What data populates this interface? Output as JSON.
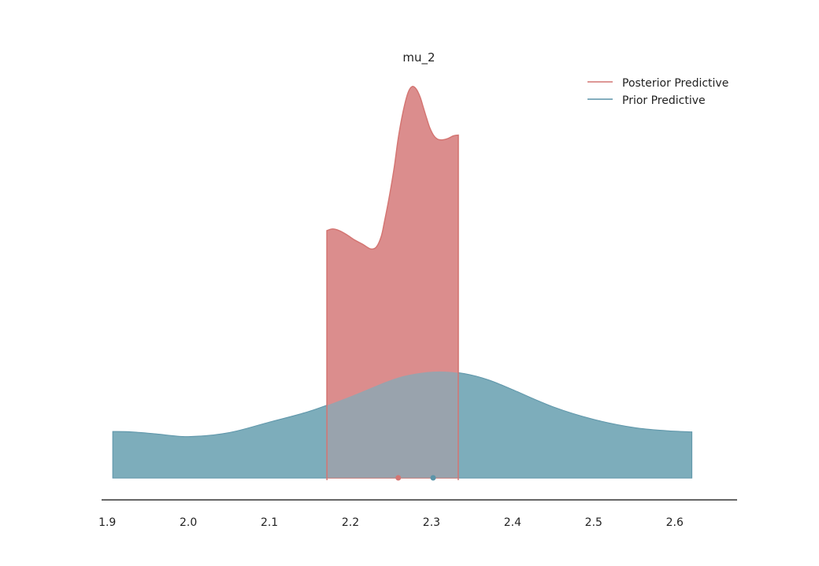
{
  "chart_data": {
    "type": "area",
    "title": "mu_2",
    "xlabel": "",
    "ylabel": "",
    "xlim": [
      1.893,
      2.677
    ],
    "ylim": [
      0,
      1
    ],
    "x_ticks": [
      "1.9",
      "2.0",
      "2.1",
      "2.2",
      "2.3",
      "2.4",
      "2.5",
      "2.6"
    ],
    "grid": false,
    "legend": {
      "placement": "top-right",
      "entries": [
        "Posterior Predictive",
        "Prior Predictive"
      ]
    },
    "series": [
      {
        "name": "Posterior Predictive",
        "color": "#d47673",
        "fill": "#db8d8d",
        "x": [
          2.171,
          2.178,
          2.186,
          2.195,
          2.205,
          2.215,
          2.225,
          2.232,
          2.238,
          2.242,
          2.248,
          2.254,
          2.259,
          2.265,
          2.271,
          2.276,
          2.281,
          2.286,
          2.29,
          2.294,
          2.298,
          2.303,
          2.308,
          2.314,
          2.32,
          2.327,
          2.333
        ],
        "values": [
          0.632,
          0.636,
          0.632,
          0.622,
          0.608,
          0.597,
          0.585,
          0.59,
          0.617,
          0.655,
          0.719,
          0.793,
          0.868,
          0.936,
          0.984,
          1.0,
          0.994,
          0.973,
          0.946,
          0.919,
          0.894,
          0.874,
          0.865,
          0.864,
          0.867,
          0.874,
          0.876
        ]
      },
      {
        "name": "Prior Predictive",
        "color": "#5b94a8",
        "fill": "#7eadbb",
        "x": [
          1.907,
          1.93,
          1.96,
          2.0,
          2.05,
          2.1,
          2.15,
          2.2,
          2.25,
          2.28,
          2.31,
          2.34,
          2.37,
          2.4,
          2.45,
          2.5,
          2.55,
          2.59,
          2.621
        ],
        "values": [
          0.118,
          0.117,
          0.112,
          0.105,
          0.115,
          0.142,
          0.17,
          0.208,
          0.25,
          0.266,
          0.272,
          0.266,
          0.25,
          0.225,
          0.181,
          0.149,
          0.128,
          0.12,
          0.117
        ]
      }
    ],
    "point_estimates": [
      {
        "name": "Posterior Predictive",
        "x": 2.259,
        "color": "#d47673"
      },
      {
        "name": "Prior Predictive",
        "x": 2.302,
        "color": "#5b94a8"
      }
    ]
  }
}
